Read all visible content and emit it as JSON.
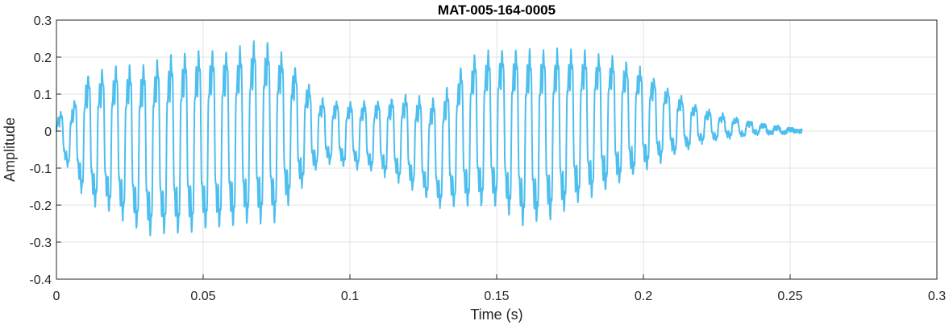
{
  "chart_data": {
    "type": "line",
    "title": "MAT-005-164-0005",
    "xlabel": "Time (s)",
    "ylabel": "Amplitude",
    "xlim": [
      0,
      0.3
    ],
    "ylim": [
      -0.4,
      0.3
    ],
    "xticks": [
      0,
      0.05,
      0.1,
      0.15,
      0.2,
      0.25,
      0.3
    ],
    "xtick_labels": [
      "0",
      "0.05",
      "0.1",
      "0.15",
      "0.2",
      "0.25",
      "0.3"
    ],
    "yticks": [
      -0.4,
      -0.3,
      -0.2,
      -0.1,
      0,
      0.1,
      0.2,
      0.3
    ],
    "ytick_labels": [
      "-0.4",
      "-0.3",
      "-0.2",
      "-0.1",
      "0",
      "0.1",
      "0.2",
      "0.3"
    ],
    "grid": true,
    "legend": "none",
    "line_color": "#4DBEEE",
    "series_envelope": {
      "description_points_x": [
        0,
        0.005,
        0.01,
        0.02,
        0.03,
        0.04,
        0.05,
        0.06,
        0.07,
        0.074,
        0.08,
        0.09,
        0.1,
        0.11,
        0.12,
        0.13,
        0.14,
        0.15,
        0.16,
        0.17,
        0.18,
        0.19,
        0.2,
        0.21,
        0.22,
        0.23,
        0.24,
        0.254
      ],
      "upper": [
        0.05,
        0.08,
        0.18,
        0.21,
        0.22,
        0.25,
        0.26,
        0.26,
        0.29,
        0.27,
        0.22,
        0.1,
        0.09,
        0.1,
        0.12,
        0.11,
        0.23,
        0.26,
        0.26,
        0.26,
        0.25,
        0.23,
        0.19,
        0.12,
        0.07,
        0.04,
        0.02,
        0.0
      ],
      "lower": [
        -0.07,
        -0.12,
        -0.22,
        -0.26,
        -0.32,
        -0.32,
        -0.31,
        -0.3,
        -0.29,
        -0.29,
        -0.22,
        -0.1,
        -0.11,
        -0.13,
        -0.17,
        -0.23,
        -0.24,
        -0.24,
        -0.3,
        -0.27,
        -0.22,
        -0.18,
        -0.13,
        -0.08,
        -0.04,
        -0.02,
        -0.01,
        0.0
      ],
      "dominant_period_s": 0.0047
    }
  }
}
